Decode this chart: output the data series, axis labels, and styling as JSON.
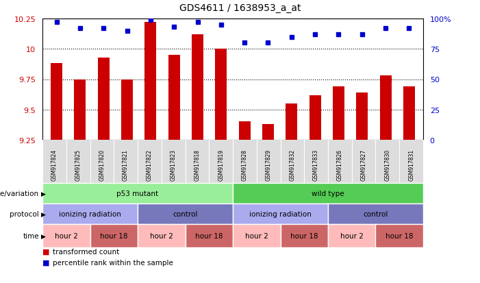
{
  "title": "GDS4611 / 1638953_a_at",
  "samples": [
    "GSM917824",
    "GSM917825",
    "GSM917820",
    "GSM917821",
    "GSM917822",
    "GSM917823",
    "GSM917818",
    "GSM917819",
    "GSM917828",
    "GSM917829",
    "GSM917832",
    "GSM917833",
    "GSM917826",
    "GSM917827",
    "GSM917830",
    "GSM917831"
  ],
  "bar_values": [
    9.88,
    9.75,
    9.93,
    9.75,
    10.22,
    9.95,
    10.12,
    10.0,
    9.4,
    9.38,
    9.55,
    9.62,
    9.69,
    9.64,
    9.78,
    9.69
  ],
  "dot_values": [
    97,
    92,
    92,
    90,
    99,
    93,
    97,
    95,
    80,
    80,
    85,
    87,
    87,
    87,
    92,
    92
  ],
  "ylim_left": [
    9.25,
    10.25
  ],
  "ylim_right": [
    0,
    100
  ],
  "yticks_left": [
    9.25,
    9.5,
    9.75,
    10.0,
    10.25
  ],
  "ytick_labels_left": [
    "9.25",
    "9.5",
    "9.75",
    "10",
    "10.25"
  ],
  "yticks_right": [
    0,
    25,
    50,
    75,
    100
  ],
  "ytick_labels_right": [
    "0",
    "25",
    "50",
    "75",
    "100%"
  ],
  "bar_color": "#cc0000",
  "dot_color": "#0000cc",
  "bar_width": 0.5,
  "bg_color": "#ffffff",
  "genotype_groups": [
    {
      "label": "p53 mutant",
      "start": 0,
      "end": 8,
      "color": "#99ee99"
    },
    {
      "label": "wild type",
      "start": 8,
      "end": 16,
      "color": "#55cc55"
    }
  ],
  "protocol_groups": [
    {
      "label": "ionizing radiation",
      "start": 0,
      "end": 4,
      "color": "#aaaaee"
    },
    {
      "label": "control",
      "start": 4,
      "end": 8,
      "color": "#7777bb"
    },
    {
      "label": "ionizing radiation",
      "start": 8,
      "end": 12,
      "color": "#aaaaee"
    },
    {
      "label": "control",
      "start": 12,
      "end": 16,
      "color": "#7777bb"
    }
  ],
  "time_groups": [
    {
      "label": "hour 2",
      "start": 0,
      "end": 2,
      "color": "#ffbbbb"
    },
    {
      "label": "hour 18",
      "start": 2,
      "end": 4,
      "color": "#cc6666"
    },
    {
      "label": "hour 2",
      "start": 4,
      "end": 6,
      "color": "#ffbbbb"
    },
    {
      "label": "hour 18",
      "start": 6,
      "end": 8,
      "color": "#cc6666"
    },
    {
      "label": "hour 2",
      "start": 8,
      "end": 10,
      "color": "#ffbbbb"
    },
    {
      "label": "hour 18",
      "start": 10,
      "end": 12,
      "color": "#cc6666"
    },
    {
      "label": "hour 2",
      "start": 12,
      "end": 14,
      "color": "#ffbbbb"
    },
    {
      "label": "hour 18",
      "start": 14,
      "end": 16,
      "color": "#cc6666"
    }
  ],
  "row_labels": [
    "genotype/variation",
    "protocol",
    "time"
  ],
  "legend_items": [
    {
      "color": "#cc0000",
      "label": "transformed count"
    },
    {
      "color": "#0000cc",
      "label": "percentile rank within the sample"
    }
  ]
}
